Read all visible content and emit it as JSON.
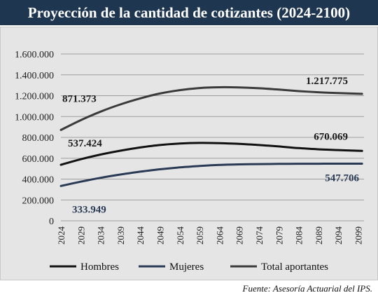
{
  "header": {
    "title": "Proyección de la cantidad de cotizantes (2024-2100)"
  },
  "source": "Fuente: Asesoría Actuarial del IPS.",
  "colors": {
    "header_bg": "#1f3650",
    "hombres": "#111111",
    "mujeres": "#2a3a55",
    "total": "#3a3a3a"
  },
  "chart_data": {
    "type": "line",
    "title": "",
    "xlabel": "",
    "ylabel": "",
    "ylim": [
      0,
      1600000
    ],
    "yticks": [
      0,
      200000,
      400000,
      600000,
      800000,
      1000000,
      1200000,
      1400000,
      1600000
    ],
    "ytick_labels": [
      "0",
      "200.000",
      "400.000",
      "600.000",
      "800.000",
      "1.000.000",
      "1.200.000",
      "1.400.000",
      "1.600.000"
    ],
    "x": [
      2024,
      2029,
      2034,
      2039,
      2044,
      2049,
      2054,
      2059,
      2064,
      2069,
      2074,
      2079,
      2084,
      2089,
      2094,
      2099
    ],
    "xtick_labels": [
      "2024",
      "2029",
      "2034",
      "2039",
      "2044",
      "2049",
      "2054",
      "2059",
      "2064",
      "2069",
      "2074",
      "2079",
      "2084",
      "2089",
      "2094",
      "2099"
    ],
    "grid": "horizontal",
    "legend": "bottom",
    "series": [
      {
        "name": "Hombres",
        "color": "#111111",
        "x": [
          2024,
          2029,
          2034,
          2039,
          2044,
          2049,
          2054,
          2059,
          2064,
          2069,
          2074,
          2079,
          2084,
          2089,
          2094,
          2100
        ],
        "values": [
          537424,
          590000,
          635000,
          672000,
          703000,
          727000,
          741000,
          747000,
          745000,
          738000,
          727000,
          713000,
          697000,
          686000,
          678000,
          670069
        ]
      },
      {
        "name": "Mujeres",
        "color": "#2a3a55",
        "x": [
          2024,
          2029,
          2034,
          2039,
          2044,
          2049,
          2054,
          2059,
          2064,
          2069,
          2074,
          2079,
          2084,
          2089,
          2094,
          2100
        ],
        "values": [
          333949,
          375000,
          412000,
          444000,
          471000,
          494000,
          512000,
          526000,
          536000,
          541000,
          544000,
          546000,
          547000,
          547500,
          547700,
          547706
        ]
      },
      {
        "name": "Total aportantes",
        "color": "#3a3a3a",
        "x": [
          2024,
          2029,
          2034,
          2039,
          2044,
          2049,
          2054,
          2059,
          2064,
          2069,
          2074,
          2079,
          2084,
          2089,
          2094,
          2100
        ],
        "values": [
          871373,
          965000,
          1047000,
          1116000,
          1174000,
          1221000,
          1253000,
          1273000,
          1281000,
          1279000,
          1271000,
          1259000,
          1244000,
          1233000,
          1225000,
          1217775
        ]
      }
    ],
    "annotations": [
      {
        "text": "871.373",
        "series": "Total aportantes",
        "x": 2024
      },
      {
        "text": "1.217.775",
        "series": "Total aportantes",
        "x": 2100
      },
      {
        "text": "537.424",
        "series": "Hombres",
        "x": 2024
      },
      {
        "text": "670.069",
        "series": "Hombres",
        "x": 2100
      },
      {
        "text": "333.949",
        "series": "Mujeres",
        "x": 2024
      },
      {
        "text": "547.706",
        "series": "Mujeres",
        "x": 2100
      }
    ]
  }
}
